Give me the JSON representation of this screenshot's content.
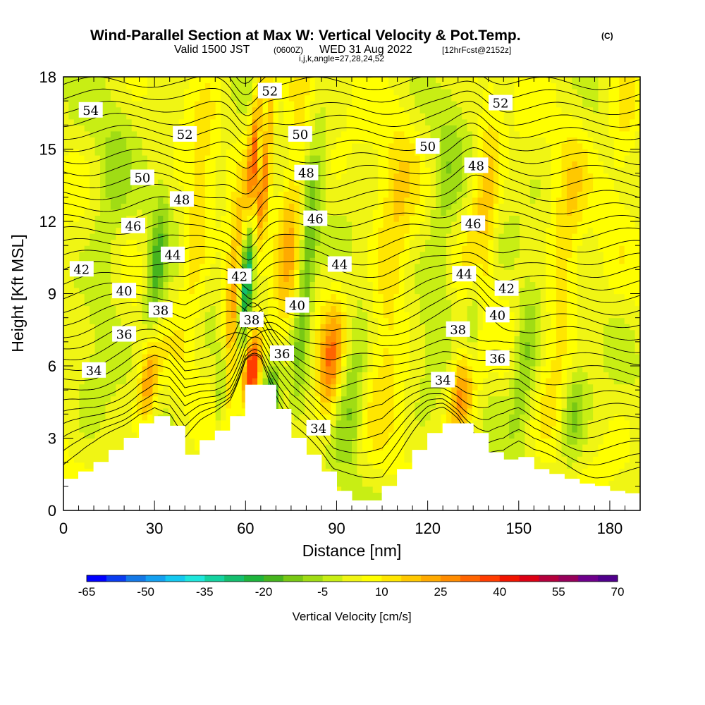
{
  "figure": {
    "title": "Wind-Parallel Section at Max W: Vertical Velocity & Pot.Temp.",
    "copyright": "(C)",
    "valid_prefix": "Valid 1500 JST",
    "valid_utc": "(0600Z)",
    "valid_date": "WED 31 Aug 2022",
    "forecast": "[12hrFcst@2152z]",
    "indices": "i,j,k,angle=27,28,24,52"
  },
  "chart_data": {
    "type": "heatmap",
    "xlabel": "Distance [nm]",
    "ylabel": "Height [Kft MSL]",
    "xlim": [
      0,
      190
    ],
    "ylim": [
      0,
      18
    ],
    "x_ticks": [
      0,
      30,
      60,
      90,
      120,
      150,
      180
    ],
    "y_ticks": [
      0,
      3,
      6,
      9,
      12,
      15,
      18
    ],
    "colorbar": {
      "label": "Vertical Velocity [cm/s]",
      "tick_labels": [
        -65,
        -50,
        -35,
        -20,
        -5,
        10,
        25,
        40,
        55,
        70
      ],
      "colors": [
        "#0000ff",
        "#0a3cf0",
        "#1478e6",
        "#14a0f0",
        "#14c8f0",
        "#1ee6dc",
        "#14d2a0",
        "#14be6e",
        "#1eb43c",
        "#46b41e",
        "#78c814",
        "#a0dc14",
        "#c8ee14",
        "#f0f514",
        "#ffff00",
        "#ffe600",
        "#ffc800",
        "#ffaa00",
        "#ff8c00",
        "#ff6400",
        "#ff3c00",
        "#f01400",
        "#dc0014",
        "#b4003c",
        "#96005a",
        "#6e008c",
        "#50008c"
      ]
    },
    "terrain_x_nm": [
      0,
      5,
      10,
      15,
      20,
      25,
      30,
      35,
      40,
      45,
      50,
      55,
      60,
      65,
      70,
      75,
      80,
      85,
      90,
      95,
      100,
      105,
      110,
      115,
      120,
      125,
      130,
      135,
      140,
      145,
      150,
      155,
      160,
      165,
      170,
      175,
      180,
      185,
      190
    ],
    "terrain_kft": [
      1.3,
      1.6,
      2.0,
      2.5,
      3.0,
      3.6,
      3.9,
      3.5,
      2.3,
      2.9,
      3.3,
      3.9,
      5.2,
      5.2,
      4.2,
      3.0,
      2.3,
      1.6,
      0.8,
      0.4,
      0.4,
      1.0,
      1.7,
      2.5,
      3.2,
      3.6,
      3.6,
      3.2,
      2.4,
      2.1,
      2.2,
      1.7,
      1.5,
      1.3,
      1.1,
      1.0,
      0.8,
      0.7,
      0.7
    ],
    "updrafts": [
      {
        "x_nm": 64,
        "z_kft": 14,
        "w_cms": 65,
        "sx": 3,
        "sz": 4
      },
      {
        "x_nm": 62,
        "z_kft": 5.8,
        "w_cms": 40,
        "sx": 3,
        "sz": 1.5
      },
      {
        "x_nm": 56,
        "z_kft": 8.5,
        "w_cms": 25,
        "sx": 3,
        "sz": 4
      },
      {
        "x_nm": 75,
        "z_kft": 12,
        "w_cms": 15,
        "sx": 4,
        "sz": 6
      },
      {
        "x_nm": 88,
        "z_kft": 6,
        "w_cms": 25,
        "sx": 4,
        "sz": 2.5
      },
      {
        "x_nm": 132,
        "z_kft": 5,
        "w_cms": 35,
        "sx": 4,
        "sz": 2
      },
      {
        "x_nm": 138,
        "z_kft": 12,
        "w_cms": 25,
        "sx": 4,
        "sz": 4
      },
      {
        "x_nm": 28,
        "z_kft": 5.5,
        "w_cms": 30,
        "sx": 3,
        "sz": 2
      },
      {
        "x_nm": 44,
        "z_kft": 12,
        "w_cms": 12,
        "sx": 4,
        "sz": 5
      },
      {
        "x_nm": 108,
        "z_kft": 10,
        "w_cms": 12,
        "sx": 6,
        "sz": 7
      },
      {
        "x_nm": 165,
        "z_kft": 10,
        "w_cms": 12,
        "sx": 5,
        "sz": 6
      },
      {
        "x_nm": 185,
        "z_kft": 16,
        "w_cms": 10,
        "sx": 5,
        "sz": 3
      }
    ],
    "downdrafts": [
      {
        "x_nm": 61,
        "z_kft": 10.5,
        "w_cms": -55,
        "sx": 2.5,
        "sz": 3.5
      },
      {
        "x_nm": 65,
        "z_kft": 15,
        "w_cms": -45,
        "sx": 1.5,
        "sz": 2.5
      },
      {
        "x_nm": 68,
        "z_kft": 4.5,
        "w_cms": -30,
        "sx": 3,
        "sz": 1.5
      },
      {
        "x_nm": 80,
        "z_kft": 10,
        "w_cms": -20,
        "sx": 3,
        "sz": 5
      },
      {
        "x_nm": 52,
        "z_kft": 5,
        "w_cms": -20,
        "sx": 2,
        "sz": 2
      },
      {
        "x_nm": 30,
        "z_kft": 9,
        "w_cms": -20,
        "sx": 3,
        "sz": 4
      },
      {
        "x_nm": 135,
        "z_kft": 8,
        "w_cms": -20,
        "sx": 3,
        "sz": 5
      },
      {
        "x_nm": 152,
        "z_kft": 6,
        "w_cms": -15,
        "sx": 4,
        "sz": 3
      },
      {
        "x_nm": 95,
        "z_kft": 5,
        "w_cms": -15,
        "sx": 5,
        "sz": 3
      },
      {
        "x_nm": 125,
        "z_kft": 12,
        "w_cms": -10,
        "sx": 5,
        "sz": 6
      },
      {
        "x_nm": 168,
        "z_kft": 4,
        "w_cms": -15,
        "sx": 4,
        "sz": 2
      },
      {
        "x_nm": 15,
        "z_kft": 12,
        "w_cms": -8,
        "sx": 6,
        "sz": 6
      }
    ],
    "theta_contour_labels": [
      {
        "text": "54",
        "x_nm": 9,
        "z_kft": 16.6
      },
      {
        "text": "52",
        "x_nm": 40,
        "z_kft": 15.6
      },
      {
        "text": "52",
        "x_nm": 68,
        "z_kft": 17.4
      },
      {
        "text": "52",
        "x_nm": 144,
        "z_kft": 16.9
      },
      {
        "text": "50",
        "x_nm": 26,
        "z_kft": 13.8
      },
      {
        "text": "50",
        "x_nm": 78,
        "z_kft": 15.6
      },
      {
        "text": "50",
        "x_nm": 120,
        "z_kft": 15.1
      },
      {
        "text": "48",
        "x_nm": 39,
        "z_kft": 12.9
      },
      {
        "text": "48",
        "x_nm": 80,
        "z_kft": 14.0
      },
      {
        "text": "48",
        "x_nm": 136,
        "z_kft": 14.3
      },
      {
        "text": "46",
        "x_nm": 23,
        "z_kft": 11.8
      },
      {
        "text": "46",
        "x_nm": 83,
        "z_kft": 12.1
      },
      {
        "text": "46",
        "x_nm": 135,
        "z_kft": 11.9
      },
      {
        "text": "44",
        "x_nm": 36,
        "z_kft": 10.6
      },
      {
        "text": "44",
        "x_nm": 91,
        "z_kft": 10.2
      },
      {
        "text": "44",
        "x_nm": 132,
        "z_kft": 9.8
      },
      {
        "text": "42",
        "x_nm": 6,
        "z_kft": 10.0
      },
      {
        "text": "42",
        "x_nm": 58,
        "z_kft": 9.7
      },
      {
        "text": "42",
        "x_nm": 146,
        "z_kft": 9.2
      },
      {
        "text": "40",
        "x_nm": 20,
        "z_kft": 9.1
      },
      {
        "text": "40",
        "x_nm": 77,
        "z_kft": 8.5
      },
      {
        "text": "40",
        "x_nm": 143,
        "z_kft": 8.1
      },
      {
        "text": "38",
        "x_nm": 32,
        "z_kft": 8.3
      },
      {
        "text": "38",
        "x_nm": 62,
        "z_kft": 7.9
      },
      {
        "text": "38",
        "x_nm": 130,
        "z_kft": 7.5
      },
      {
        "text": "36",
        "x_nm": 20,
        "z_kft": 7.3
      },
      {
        "text": "36",
        "x_nm": 72,
        "z_kft": 6.5
      },
      {
        "text": "36",
        "x_nm": 143,
        "z_kft": 6.3
      },
      {
        "text": "34",
        "x_nm": 10,
        "z_kft": 5.8
      },
      {
        "text": "34",
        "x_nm": 125,
        "z_kft": 5.4
      },
      {
        "text": "34",
        "x_nm": 84,
        "z_kft": 3.4
      }
    ]
  }
}
